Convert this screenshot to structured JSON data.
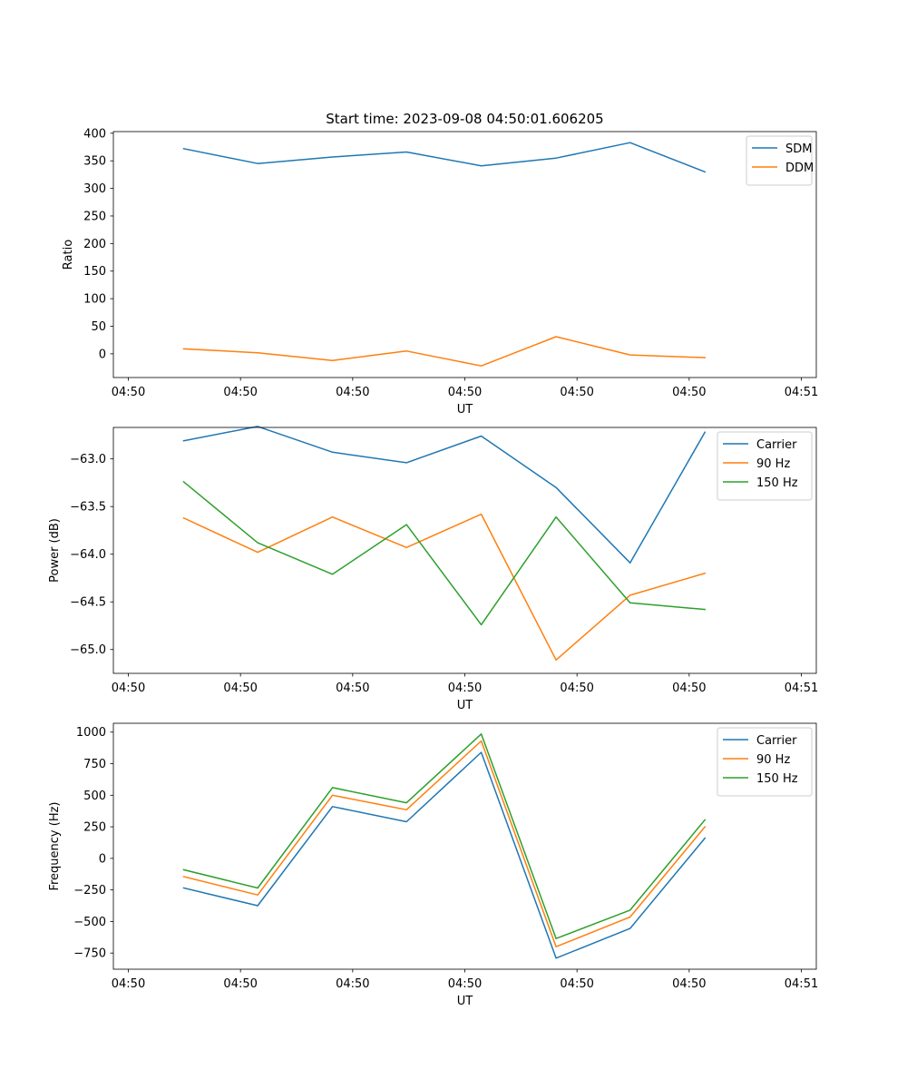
{
  "figure": {
    "title": "Start time: 2023-09-08 04:50:01.606205"
  },
  "colors": {
    "blue": "#1f77b4",
    "orange": "#ff7f0e",
    "green": "#2ca02c"
  },
  "chart_data": [
    {
      "type": "line",
      "title": "Start time: 2023-09-08 04:50:01.606205",
      "xlabel": "UT",
      "ylabel": "Ratio",
      "xlim": [
        0,
        9.4
      ],
      "ylim": [
        -43,
        403
      ],
      "x_ticks": [
        {
          "x": 0.2,
          "label": "04:50"
        },
        {
          "x": 1.7,
          "label": "04:50"
        },
        {
          "x": 3.2,
          "label": "04:50"
        },
        {
          "x": 4.7,
          "label": "04:50"
        },
        {
          "x": 6.2,
          "label": "04:50"
        },
        {
          "x": 7.7,
          "label": "04:50"
        },
        {
          "x": 9.2,
          "label": "04:51"
        }
      ],
      "y_ticks": [
        {
          "y": 0,
          "label": "0"
        },
        {
          "y": 50,
          "label": "50"
        },
        {
          "y": 100,
          "label": "100"
        },
        {
          "y": 150,
          "label": "150"
        },
        {
          "y": 200,
          "label": "200"
        },
        {
          "y": 250,
          "label": "250"
        },
        {
          "y": 300,
          "label": "300"
        },
        {
          "y": 350,
          "label": "350"
        },
        {
          "y": 400,
          "label": "400"
        }
      ],
      "x": [
        0.94,
        1.93,
        2.93,
        3.92,
        4.92,
        5.92,
        6.91,
        7.91
      ],
      "series": [
        {
          "name": "SDM",
          "color": "#1f77b4",
          "values": [
            372,
            345,
            357,
            366,
            341,
            355,
            383,
            330
          ]
        },
        {
          "name": "DDM",
          "color": "#ff7f0e",
          "values": [
            9,
            2,
            -12,
            5,
            -22,
            31,
            -2,
            -7
          ]
        }
      ],
      "legend": "top-right"
    },
    {
      "type": "line",
      "title": "",
      "xlabel": "UT",
      "ylabel": "Power (dB)",
      "xlim": [
        0,
        9.4
      ],
      "ylim": [
        -65.25,
        -62.67
      ],
      "x_ticks": [
        {
          "x": 0.2,
          "label": "04:50"
        },
        {
          "x": 1.7,
          "label": "04:50"
        },
        {
          "x": 3.2,
          "label": "04:50"
        },
        {
          "x": 4.7,
          "label": "04:50"
        },
        {
          "x": 6.2,
          "label": "04:50"
        },
        {
          "x": 7.7,
          "label": "04:50"
        },
        {
          "x": 9.2,
          "label": "04:51"
        }
      ],
      "y_ticks": [
        {
          "y": -65.0,
          "label": "−65.0"
        },
        {
          "y": -64.5,
          "label": "−64.5"
        },
        {
          "y": -64.0,
          "label": "−64.0"
        },
        {
          "y": -63.5,
          "label": "−63.5"
        },
        {
          "y": -63.0,
          "label": "−63.0"
        }
      ],
      "x": [
        0.94,
        1.93,
        2.93,
        3.92,
        4.92,
        5.92,
        6.91,
        7.91
      ],
      "series": [
        {
          "name": "Carrier",
          "color": "#1f77b4",
          "values": [
            -62.81,
            -62.66,
            -62.93,
            -63.04,
            -62.76,
            -63.3,
            -64.09,
            -62.72
          ]
        },
        {
          "name": "90 Hz",
          "color": "#ff7f0e",
          "values": [
            -63.62,
            -63.98,
            -63.61,
            -63.93,
            -63.58,
            -65.11,
            -64.43,
            -64.2
          ]
        },
        {
          "name": "150 Hz",
          "color": "#2ca02c",
          "values": [
            -63.24,
            -63.88,
            -64.21,
            -63.69,
            -64.74,
            -63.61,
            -64.51,
            -64.58
          ]
        }
      ],
      "legend": "top-right"
    },
    {
      "type": "line",
      "title": "",
      "xlabel": "UT",
      "ylabel": "Frequency (Hz)",
      "xlim": [
        0,
        9.4
      ],
      "ylim": [
        -878,
        1070
      ],
      "x_ticks": [
        {
          "x": 0.2,
          "label": "04:50"
        },
        {
          "x": 1.7,
          "label": "04:50"
        },
        {
          "x": 3.2,
          "label": "04:50"
        },
        {
          "x": 4.7,
          "label": "04:50"
        },
        {
          "x": 6.2,
          "label": "04:50"
        },
        {
          "x": 7.7,
          "label": "04:50"
        },
        {
          "x": 9.2,
          "label": "04:51"
        }
      ],
      "y_ticks": [
        {
          "y": -750,
          "label": "−750"
        },
        {
          "y": -500,
          "label": "−500"
        },
        {
          "y": -250,
          "label": "−250"
        },
        {
          "y": 0,
          "label": "0"
        },
        {
          "y": 250,
          "label": "250"
        },
        {
          "y": 500,
          "label": "500"
        },
        {
          "y": 750,
          "label": "750"
        },
        {
          "y": 1000,
          "label": "1000"
        }
      ],
      "x": [
        0.94,
        1.93,
        2.93,
        3.92,
        4.92,
        5.92,
        6.91,
        7.91
      ],
      "series": [
        {
          "name": "Carrier",
          "color": "#1f77b4",
          "values": [
            -235,
            -375,
            410,
            290,
            840,
            -790,
            -555,
            160
          ]
        },
        {
          "name": "90 Hz",
          "color": "#ff7f0e",
          "values": [
            -145,
            -290,
            500,
            385,
            930,
            -700,
            -465,
            250
          ]
        },
        {
          "name": "150 Hz",
          "color": "#2ca02c",
          "values": [
            -90,
            -235,
            560,
            440,
            985,
            -635,
            -410,
            305
          ]
        }
      ],
      "legend": "top-right"
    }
  ]
}
